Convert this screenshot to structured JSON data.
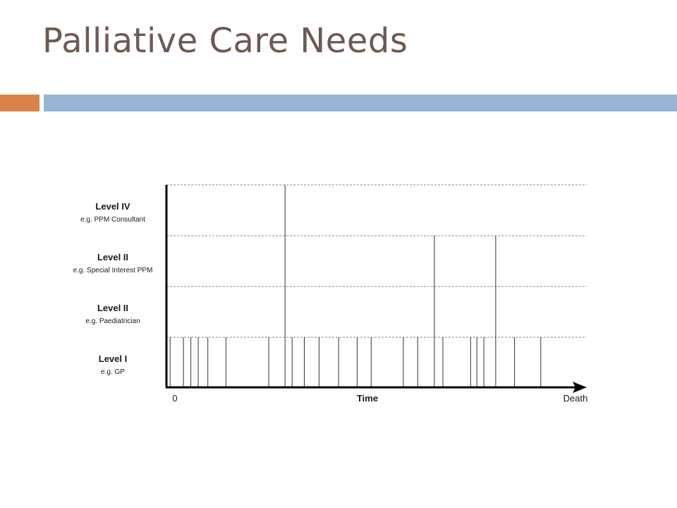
{
  "slide": {
    "title": "Palliative Care Needs",
    "accent_colors": {
      "orange": "#d9834a",
      "blue": "#96b4d3",
      "title": "#6e5a52"
    }
  },
  "diagram": {
    "levels": [
      {
        "name": "Level IV",
        "example": "e.g. PPM Consultant"
      },
      {
        "name": "Level II",
        "example": "e.g. Special Interest PPM"
      },
      {
        "name": "Level II",
        "example": "e.g. Paediatrician"
      },
      {
        "name": "Level I",
        "example": "e.g. GP"
      }
    ],
    "x_axis": {
      "start": "0",
      "title": "Time",
      "end": "Death"
    },
    "grid": "dashed",
    "time_range": [
      0,
      100
    ],
    "spikes": [
      {
        "t": 1,
        "level": 1
      },
      {
        "t": 4.6,
        "level": 1
      },
      {
        "t": 6.6,
        "level": 1
      },
      {
        "t": 8.6,
        "level": 1
      },
      {
        "t": 11.2,
        "level": 1
      },
      {
        "t": 16.1,
        "level": 1
      },
      {
        "t": 27.7,
        "level": 1
      },
      {
        "t": 32.1,
        "level": 4
      },
      {
        "t": 34,
        "level": 1
      },
      {
        "t": 37.3,
        "level": 1
      },
      {
        "t": 41.3,
        "level": 1
      },
      {
        "t": 46.6,
        "level": 1
      },
      {
        "t": 51.6,
        "level": 1
      },
      {
        "t": 55.4,
        "level": 1
      },
      {
        "t": 64.1,
        "level": 1
      },
      {
        "t": 68,
        "level": 1
      },
      {
        "t": 72.5,
        "level": 3
      },
      {
        "t": 74.8,
        "level": 1
      },
      {
        "t": 82.3,
        "level": 1
      },
      {
        "t": 84,
        "level": 1
      },
      {
        "t": 85.9,
        "level": 1
      },
      {
        "t": 89.1,
        "level": 3
      },
      {
        "t": 94.2,
        "level": 1
      },
      {
        "t": 101.3,
        "level": 1
      }
    ]
  }
}
